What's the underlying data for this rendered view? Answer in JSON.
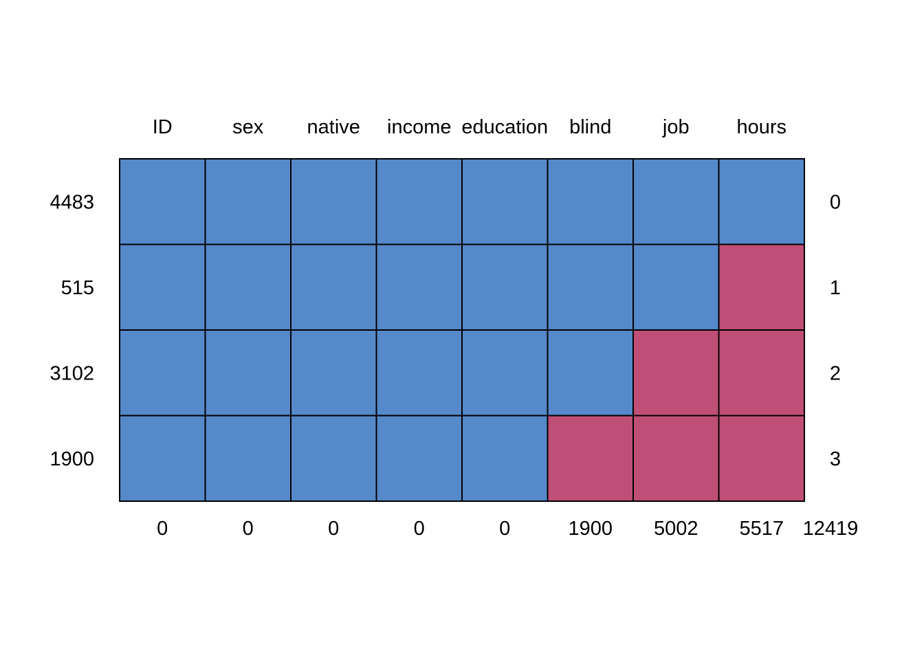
{
  "chart_data": {
    "type": "heatmap",
    "columns": [
      "ID",
      "sex",
      "native",
      "income",
      "education",
      "blind",
      "job",
      "hours"
    ],
    "row_counts": [
      "4483",
      "515",
      "3102",
      "1900"
    ],
    "row_missing_counts": [
      "0",
      "1",
      "2",
      "3"
    ],
    "column_missing_totals": [
      "0",
      "0",
      "0",
      "0",
      "0",
      "1900",
      "5002",
      "5517"
    ],
    "total_missing": "12419",
    "pattern": [
      [
        1,
        1,
        1,
        1,
        1,
        1,
        1,
        1
      ],
      [
        1,
        1,
        1,
        1,
        1,
        1,
        1,
        0
      ],
      [
        1,
        1,
        1,
        1,
        1,
        1,
        0,
        0
      ],
      [
        1,
        1,
        1,
        1,
        1,
        0,
        0,
        0
      ]
    ],
    "colors": {
      "observed": "#5589CA",
      "missing": "#C04F77"
    }
  }
}
